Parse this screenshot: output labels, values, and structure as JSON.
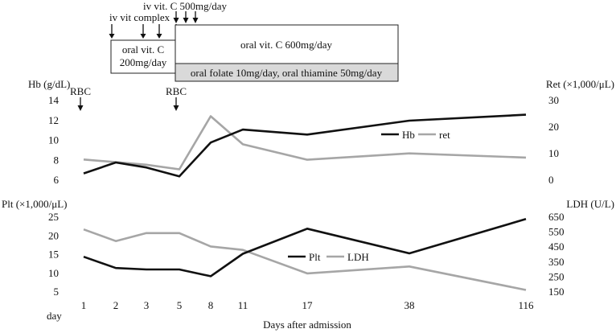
{
  "chart_data": [
    {
      "type": "line",
      "panel": "top",
      "categories": [
        "1",
        "2",
        "3",
        "5",
        "8",
        "11",
        "17",
        "38",
        "116"
      ],
      "ylabel_left": "Hb (g/dL)",
      "ylabel_right": "Ret (×1,000/μL)",
      "ylim_left": [
        6,
        14
      ],
      "yticks_left": [
        "6",
        "8",
        "10",
        "12",
        "14"
      ],
      "ylim_right": [
        0,
        30
      ],
      "yticks_right": [
        "0",
        "10",
        "20",
        "30"
      ],
      "series": [
        {
          "name": "Hb",
          "axis": "left",
          "color": "#111111",
          "values": [
            6.6,
            7.7,
            7.2,
            6.3,
            9.7,
            11.0,
            10.5,
            11.9,
            12.5
          ]
        },
        {
          "name": "ret",
          "axis": "right",
          "color": "#a6a6a6",
          "values": [
            7.5,
            6.5,
            5.5,
            3.8,
            23.8,
            13.2,
            7.4,
            9.8,
            8.2
          ]
        }
      ],
      "annotations": [
        {
          "text": "RBC",
          "at": "1"
        },
        {
          "text": "RBC",
          "at": "5"
        }
      ],
      "legend": "center-right"
    },
    {
      "type": "line",
      "panel": "bottom",
      "categories": [
        "1",
        "2",
        "3",
        "5",
        "8",
        "11",
        "17",
        "38",
        "116"
      ],
      "ylabel_left": "Plt (×1,000/μL)",
      "ylabel_right": "LDH (U/L)",
      "ylim_left": [
        5,
        25
      ],
      "yticks_left": [
        "5",
        "10",
        "15",
        "20",
        "25"
      ],
      "ylim_right": [
        150,
        650
      ],
      "yticks_right": [
        "150",
        "250",
        "350",
        "450",
        "550",
        "650"
      ],
      "series": [
        {
          "name": "Plt",
          "axis": "left",
          "color": "#111111",
          "values": [
            14.2,
            11.2,
            10.8,
            10.8,
            9.0,
            15.0,
            21.7,
            15.1,
            24.3
          ]
        },
        {
          "name": "LDH",
          "axis": "right",
          "color": "#a6a6a6",
          "values": [
            563,
            485,
            538,
            538,
            449,
            426,
            269,
            315,
            158
          ]
        }
      ],
      "legend": "center",
      "xlabel": "Days after admission",
      "xlabel_left": "day"
    }
  ],
  "treatments": {
    "pointers": [
      {
        "text": "iv vit complex",
        "days": [
          1,
          3,
          5
        ]
      },
      {
        "text": "iv vit. C 500mg/day",
        "days": [
          5,
          6,
          7
        ]
      }
    ],
    "boxes": [
      {
        "text": "oral vit. C\n200mg/day"
      },
      {
        "text": "oral vit. C 600mg/day"
      },
      {
        "text": "oral folate 10mg/day, oral thiamine 50mg/day",
        "fill": "#d9d9d9"
      }
    ]
  }
}
